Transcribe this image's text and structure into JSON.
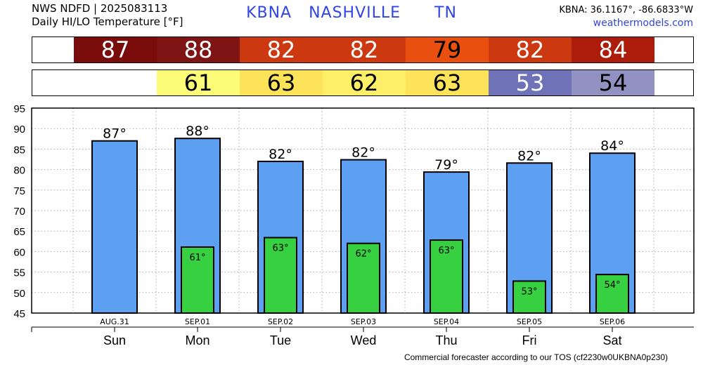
{
  "header": {
    "line1": "NWS NDFD | 2025083113",
    "line2": "Daily HI/LO Temperature [°F]",
    "station": "KBNA",
    "city": "NASHVILLE",
    "state": "TN",
    "coords": "KBNA: 36.1167°, -86.6833°W",
    "site": "weathermodels.com"
  },
  "hi_strip": [
    {
      "text": "87",
      "color": "#7b0c0c",
      "text_color": "#ffffff"
    },
    {
      "text": "88",
      "color": "#7e1414",
      "text_color": "#ffffff"
    },
    {
      "text": "82",
      "color": "#cc3810",
      "text_color": "#ffffff"
    },
    {
      "text": "82",
      "color": "#cc3810",
      "text_color": "#ffffff"
    },
    {
      "text": "79",
      "color": "#e95010",
      "text_color": "#000000"
    },
    {
      "text": "82",
      "color": "#cc3810",
      "text_color": "#ffffff"
    },
    {
      "text": "84",
      "color": "#ab1d0a",
      "text_color": "#ffffff"
    }
  ],
  "lo_strip": [
    {
      "text": "",
      "color": "#ffffff",
      "text_color": "#000000"
    },
    {
      "text": "61",
      "color": "#fdfc78",
      "text_color": "#000000"
    },
    {
      "text": "63",
      "color": "#fde35a",
      "text_color": "#000000"
    },
    {
      "text": "62",
      "color": "#fdf068",
      "text_color": "#000000"
    },
    {
      "text": "63",
      "color": "#fde35a",
      "text_color": "#000000"
    },
    {
      "text": "53",
      "color": "#7072b8",
      "text_color": "#ffffff"
    },
    {
      "text": "54",
      "color": "#9292c2",
      "text_color": "#000000"
    }
  ],
  "chart_data": {
    "type": "bar",
    "categories": [
      "Sun",
      "Mon",
      "Tue",
      "Wed",
      "Thu",
      "Fri",
      "Sat"
    ],
    "dates": [
      "AUG.31",
      "SEP.01",
      "SEP.02",
      "SEP.03",
      "SEP.04",
      "SEP.05",
      "SEP.06"
    ],
    "series": [
      {
        "name": "HI",
        "values": [
          87,
          87.6,
          82,
          82.4,
          79.4,
          81.6,
          84
        ],
        "labels": [
          "87°",
          "88°",
          "82°",
          "82°",
          "79°",
          "82°",
          "84°"
        ],
        "color": "#5d9ff0"
      },
      {
        "name": "LO",
        "values": [
          null,
          61.1,
          63.4,
          62,
          62.8,
          52.8,
          54.4
        ],
        "labels": [
          "",
          "61°",
          "63°",
          "62°",
          "63°",
          "53°",
          "54°"
        ],
        "color": "#37d040"
      }
    ],
    "ylim": [
      45,
      95
    ],
    "yticks": [
      "45",
      "50",
      "55",
      "60",
      "65",
      "70",
      "75",
      "80",
      "85",
      "90",
      "95"
    ],
    "grid": true
  },
  "footer": "Commercial forecaster according to our TOS (cf2230w0UKBNA0p230)"
}
